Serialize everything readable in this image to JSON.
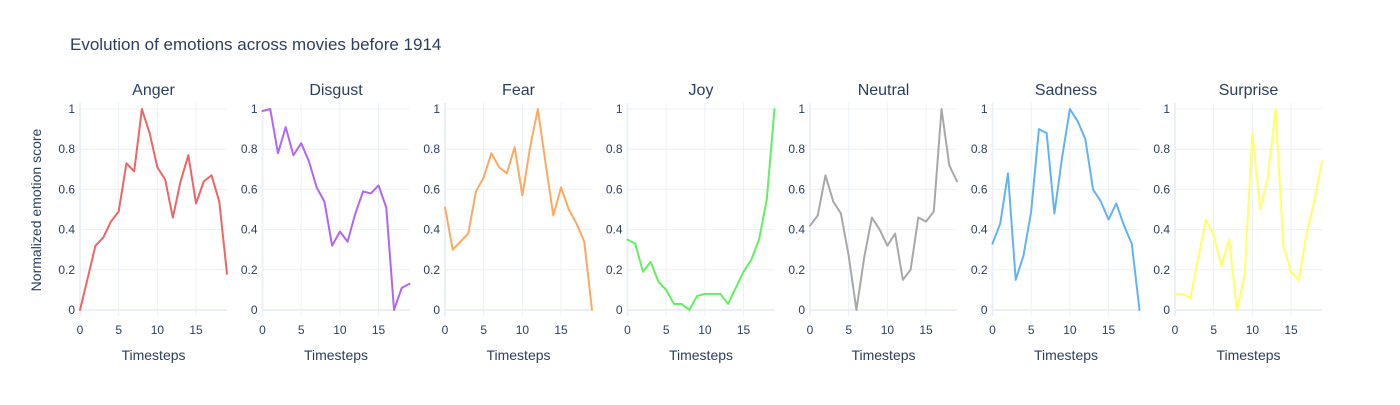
{
  "chart_data": {
    "type": "line",
    "title": "Evolution of emotions across movies before 1914",
    "ylabel": "Normalized emotion score",
    "xlabel": "Timesteps",
    "x": [
      0,
      1,
      2,
      3,
      4,
      5,
      6,
      7,
      8,
      9,
      10,
      11,
      12,
      13,
      14,
      15,
      16,
      17,
      18,
      19
    ],
    "x_ticks": [
      0,
      5,
      10,
      15
    ],
    "y_ticks": [
      0,
      0.2,
      0.4,
      0.6,
      0.8,
      1
    ],
    "xlim": [
      0,
      19
    ],
    "ylim": [
      -0.03,
      1.03
    ],
    "grid": true,
    "panels": [
      {
        "name": "Anger",
        "color": "#ef6464",
        "values": [
          0,
          0.16,
          0.32,
          0.36,
          0.44,
          0.49,
          0.73,
          0.69,
          1.0,
          0.88,
          0.71,
          0.65,
          0.46,
          0.64,
          0.77,
          0.53,
          0.64,
          0.67,
          0.54,
          0.18
        ]
      },
      {
        "name": "Disgust",
        "color": "#b266f0",
        "values": [
          0.99,
          1.0,
          0.78,
          0.91,
          0.77,
          0.83,
          0.74,
          0.61,
          0.54,
          0.32,
          0.39,
          0.34,
          0.48,
          0.59,
          0.58,
          0.62,
          0.51,
          0,
          0.11,
          0.13
        ]
      },
      {
        "name": "Fear",
        "color": "#ffa860",
        "values": [
          0.51,
          0.3,
          0.34,
          0.38,
          0.59,
          0.66,
          0.78,
          0.71,
          0.68,
          0.81,
          0.57,
          0.81,
          1.0,
          0.73,
          0.47,
          0.61,
          0.5,
          0.43,
          0.34,
          0
        ]
      },
      {
        "name": "Joy",
        "color": "#60f060",
        "values": [
          0.35,
          0.33,
          0.19,
          0.24,
          0.14,
          0.1,
          0.03,
          0.03,
          0,
          0.07,
          0.08,
          0.08,
          0.08,
          0.03,
          0.11,
          0.19,
          0.25,
          0.35,
          0.55,
          1.0
        ]
      },
      {
        "name": "Neutral",
        "color": "#a8a8a8",
        "values": [
          0.42,
          0.47,
          0.67,
          0.54,
          0.48,
          0.27,
          0,
          0.26,
          0.46,
          0.4,
          0.32,
          0.38,
          0.15,
          0.2,
          0.46,
          0.44,
          0.49,
          1.0,
          0.72,
          0.64
        ]
      },
      {
        "name": "Sadness",
        "color": "#60b4f4",
        "values": [
          0.33,
          0.43,
          0.68,
          0.15,
          0.27,
          0.49,
          0.9,
          0.88,
          0.48,
          0.76,
          1.0,
          0.94,
          0.85,
          0.6,
          0.54,
          0.45,
          0.53,
          0.42,
          0.33,
          0
        ]
      },
      {
        "name": "Surprise",
        "color": "#ffff66",
        "values": [
          0.08,
          0.08,
          0.06,
          0.26,
          0.45,
          0.37,
          0.22,
          0.35,
          0,
          0.17,
          0.88,
          0.5,
          0.66,
          1.0,
          0.32,
          0.19,
          0.15,
          0.38,
          0.54,
          0.74
        ]
      }
    ]
  }
}
